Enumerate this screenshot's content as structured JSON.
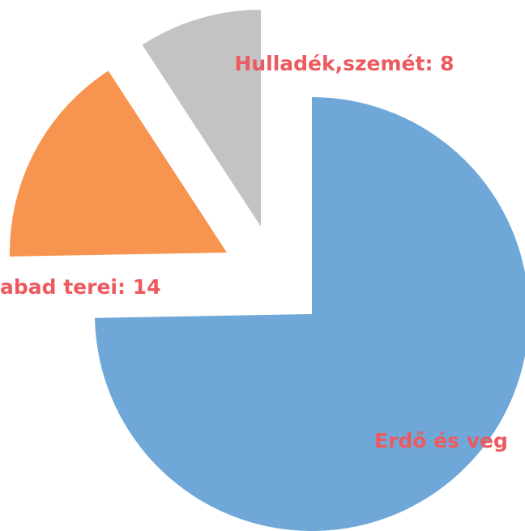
{
  "chart_data": {
    "type": "pie",
    "values": [
      65,
      14,
      8
    ],
    "value_labels": [
      "Erdő és veg",
      "abad terei: 14",
      "Hulladék,szemét: 8"
    ],
    "colors": [
      "#6fa8d8",
      "#f7944f",
      "#c3c3c3"
    ]
  }
}
